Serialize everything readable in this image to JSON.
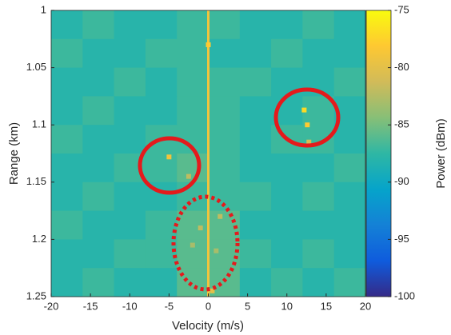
{
  "chart_data": {
    "type": "heatmap",
    "xlabel": "Velocity (m/s)",
    "ylabel": "Range (km)",
    "colorbar_label": "Power (dBm)",
    "xlim": [
      -20,
      20
    ],
    "ylim": [
      1,
      1.25
    ],
    "y_reversed": true,
    "xticks": [
      -20,
      -15,
      -10,
      -5,
      0,
      5,
      10,
      15,
      20
    ],
    "yticks": [
      1,
      1.05,
      1.1,
      1.15,
      1.2,
      1.25
    ],
    "clim": [
      -100,
      -75
    ],
    "cticks": [
      -100,
      -95,
      -90,
      -85,
      -80,
      -75
    ],
    "colormap": [
      "#352a87",
      "#0f5cdd",
      "#1481d6",
      "#06a4ca",
      "#2eb7a4",
      "#87bf77",
      "#d1bb59",
      "#fec832",
      "#f9fb0e"
    ],
    "grid_x": [
      -20,
      -16,
      -12,
      -8,
      -4,
      0,
      4,
      8,
      12,
      16,
      20
    ],
    "grid_y": [
      1,
      1.025,
      1.05,
      1.075,
      1.1,
      1.125,
      1.15,
      1.175,
      1.2,
      1.225,
      1.25
    ],
    "grid_values": [
      [
        -88,
        -87,
        -88,
        -88,
        -87,
        -87,
        -88,
        -88,
        -87,
        -88
      ],
      [
        -87,
        -88,
        -88,
        -87,
        -87,
        -88,
        -88,
        -87,
        -88,
        -88
      ],
      [
        -88,
        -88,
        -87,
        -88,
        -87,
        -87,
        -87,
        -88,
        -88,
        -87
      ],
      [
        -88,
        -87,
        -88,
        -88,
        -87,
        -87,
        -88,
        -88,
        -87,
        -88
      ],
      [
        -87,
        -88,
        -88,
        -87,
        -87,
        -87,
        -88,
        -87,
        -87,
        -88
      ],
      [
        -88,
        -88,
        -87,
        -87,
        -86,
        -87,
        -88,
        -88,
        -88,
        -87
      ],
      [
        -88,
        -87,
        -88,
        -88,
        -87,
        -87,
        -87,
        -88,
        -87,
        -88
      ],
      [
        -87,
        -88,
        -88,
        -87,
        -86,
        -86,
        -88,
        -88,
        -88,
        -88
      ],
      [
        -88,
        -88,
        -87,
        -87,
        -86,
        -86,
        -87,
        -88,
        -87,
        -88
      ],
      [
        -88,
        -87,
        -88,
        -88,
        -86,
        -86,
        -88,
        -87,
        -88,
        -87
      ]
    ],
    "line": {
      "x": 0,
      "y": [
        1,
        1.25
      ],
      "value": -79
    },
    "points": {
      "x": [
        0,
        -5,
        -2.5,
        12.2,
        12.6,
        12.8,
        -1,
        1,
        0.5,
        -2,
        1.5
      ],
      "y": [
        1.03,
        1.128,
        1.145,
        1.087,
        1.1,
        1.115,
        1.19,
        1.21,
        1.245,
        1.205,
        1.18
      ],
      "values": [
        -78,
        -79,
        -82,
        -77,
        -78,
        -81,
        -82,
        -83,
        -80,
        -83,
        -82
      ]
    }
  }
}
